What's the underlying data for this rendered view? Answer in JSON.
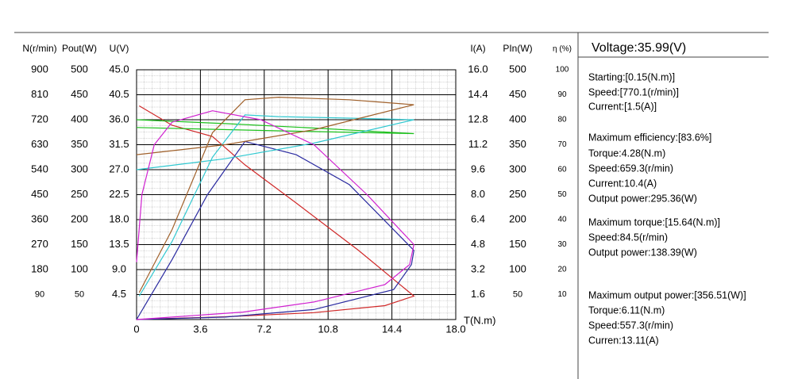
{
  "chart_data": {
    "type": "line",
    "xlabel": "T(N.m)",
    "xlim": [
      0,
      18
    ],
    "xticks": [
      0,
      3.6,
      7.2,
      10.8,
      14.4,
      {
        "value": 18,
        "label": "18.0"
      }
    ],
    "grid": true,
    "axes": [
      {
        "label": "N(r/min)",
        "side": "left",
        "color": "#d02828",
        "ylim": [
          0,
          900
        ],
        "yticks": [
          90,
          180,
          270,
          360,
          450,
          540,
          630,
          720,
          810,
          900
        ]
      },
      {
        "label": "Pout(W)",
        "side": "left",
        "color": "#2a2aa0",
        "ylim": [
          0,
          500
        ],
        "yticks": [
          50,
          100,
          150,
          200,
          250,
          300,
          350,
          400,
          450,
          500
        ]
      },
      {
        "label": "U(V)",
        "side": "left",
        "color": "#1cc01c",
        "ylim": [
          0,
          45
        ],
        "yticks": [
          4.5,
          {
            "value": 9,
            "label": "9.0"
          },
          13.5,
          {
            "value": 18,
            "label": "18.0"
          },
          22.5,
          {
            "value": 27,
            "label": "27.0"
          },
          31.5,
          {
            "value": 36,
            "label": "36.0"
          },
          40.5,
          {
            "value": 45,
            "label": "45.0"
          }
        ]
      },
      {
        "label": "I(A)",
        "side": "right",
        "color": "#30c8d0",
        "ylim": [
          0,
          16
        ],
        "yticks": [
          1.6,
          3.2,
          4.8,
          6.4,
          {
            "value": 8,
            "label": "8.0"
          },
          9.6,
          11.2,
          12.8,
          14.4,
          {
            "value": 16,
            "label": "16.0"
          }
        ]
      },
      {
        "label": "PIn(W)",
        "side": "right",
        "color": "#a0602a",
        "ylim": [
          0,
          500
        ],
        "yticks": [
          50,
          100,
          150,
          200,
          250,
          300,
          350,
          400,
          450,
          500
        ]
      },
      {
        "label": "η (%)",
        "side": "right",
        "color": "#d020d0",
        "ylim": [
          0,
          100
        ],
        "yticks": [
          10,
          20,
          30,
          40,
          50,
          60,
          70,
          80,
          90,
          100
        ]
      }
    ],
    "series": [
      {
        "axis": 0,
        "x": [
          0.15,
          2,
          4.28,
          6.11,
          9,
          12.5,
          15.64,
          14,
          10,
          5,
          0
        ],
        "values": [
          770.1,
          700,
          659.3,
          557.3,
          420,
          250,
          84.5,
          50,
          25,
          10,
          0
        ]
      },
      {
        "axis": 1,
        "x": [
          0,
          2,
          4,
          6.11,
          9,
          12,
          15.64,
          15.5,
          14.5,
          10,
          5,
          0
        ],
        "values": [
          0,
          120,
          250,
          356.51,
          330,
          270,
          138.39,
          110,
          60,
          20,
          5,
          0
        ]
      },
      {
        "axis": 2,
        "x": [
          0,
          5,
          10,
          15.64,
          8,
          0
        ],
        "values": [
          36,
          35.3,
          34.5,
          33.5,
          34,
          34.6
        ]
      },
      {
        "axis": 3,
        "x": [
          0.15,
          2,
          4.28,
          6.11,
          8,
          12,
          15.64,
          10,
          5,
          0
        ],
        "values": [
          1.5,
          5,
          10.4,
          13.11,
          13,
          12.9,
          12.8,
          11.3,
          10.3,
          9.6
        ]
      },
      {
        "axis": 4,
        "x": [
          0.15,
          2,
          4.28,
          6.11,
          8,
          12,
          15.64,
          10,
          5,
          0
        ],
        "values": [
          54,
          180,
          374,
          440,
          445,
          440,
          430,
          380,
          350,
          330
        ]
      },
      {
        "axis": 5,
        "x": [
          0,
          0.3,
          1,
          2,
          4.28,
          7,
          10,
          13,
          15.64,
          15.4,
          14,
          10,
          6,
          2,
          0
        ],
        "values": [
          23,
          50,
          70,
          79,
          83.6,
          80,
          70,
          50,
          30,
          22,
          14,
          7,
          3,
          1,
          0
        ]
      }
    ]
  },
  "panel": {
    "title": "Voltage:35.99(V)",
    "groups": [
      [
        "Starting:[0.15(N.m)]",
        "Speed:[770.1(r/min)]",
        "Current:[1.5(A)]"
      ],
      [
        "Maximum efficiency:[83.6%]",
        "Torque:4.28(N.m)",
        "Speed:659.3(r/min)",
        "Current:10.4(A)",
        "Output power:295.36(W)"
      ],
      [
        "Maximum torque:[15.64(N.m)]",
        "Speed:84.5(r/min)",
        "Output power:138.39(W)"
      ],
      [
        "Maximum output power:[356.51(W)]",
        "Torque:6.11(N.m)",
        "Speed:557.3(r/min)",
        "Curren:13.11(A)"
      ]
    ]
  }
}
